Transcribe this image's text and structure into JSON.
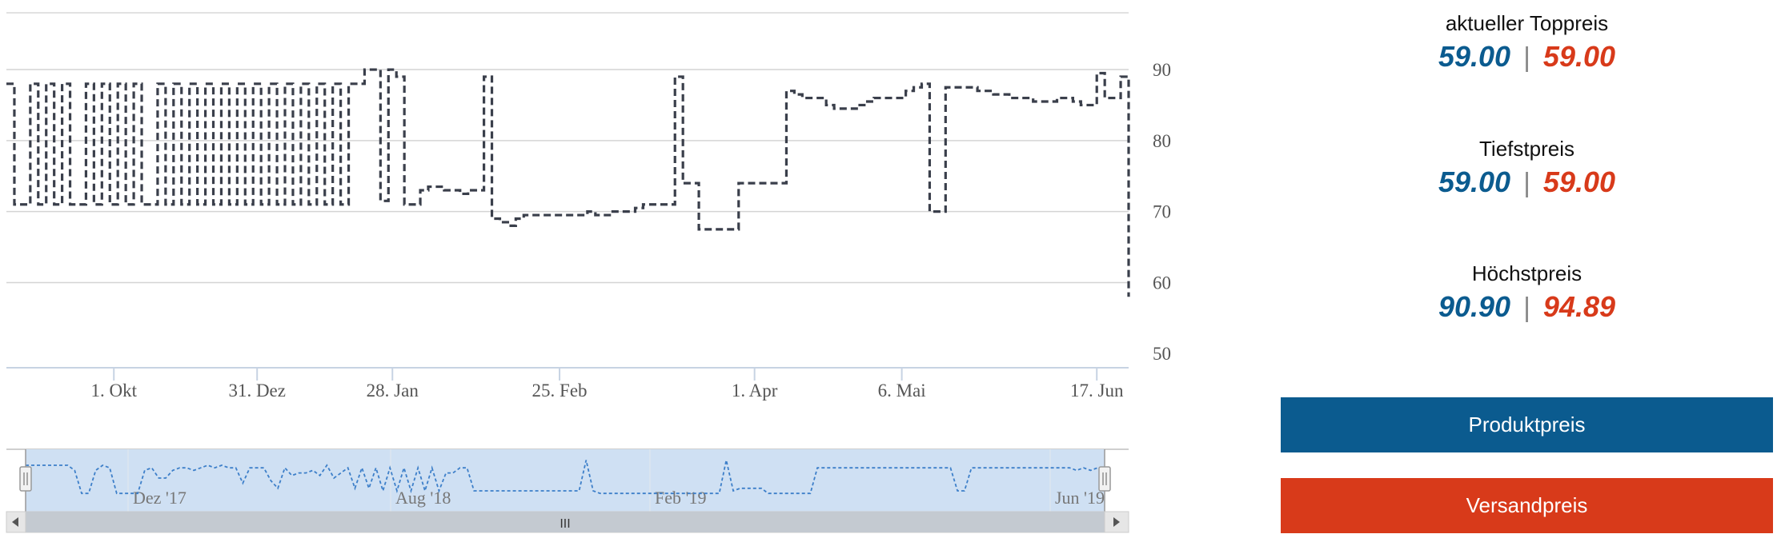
{
  "chart_data": {
    "type": "line",
    "series": [
      {
        "color": "#3a3f4b",
        "dash": "dashed",
        "step": true,
        "points": [
          [
            0,
            88
          ],
          [
            1,
            71
          ],
          [
            2,
            71
          ],
          [
            3,
            88
          ],
          [
            4,
            71
          ],
          [
            5,
            88
          ],
          [
            6,
            71
          ],
          [
            7,
            88
          ],
          [
            8,
            71
          ],
          [
            9,
            71
          ],
          [
            10,
            88
          ],
          [
            11,
            71
          ],
          [
            12,
            88
          ],
          [
            13,
            71
          ],
          [
            14,
            88
          ],
          [
            15,
            71
          ],
          [
            16,
            88
          ],
          [
            17,
            71
          ],
          [
            18,
            71
          ],
          [
            19,
            88
          ],
          [
            20,
            71
          ],
          [
            21,
            88
          ],
          [
            22,
            71
          ],
          [
            23,
            88
          ],
          [
            24,
            71
          ],
          [
            25,
            88
          ],
          [
            26,
            71
          ],
          [
            27,
            88
          ],
          [
            28,
            71
          ],
          [
            29,
            88
          ],
          [
            30,
            71
          ],
          [
            31,
            88
          ],
          [
            32,
            71
          ],
          [
            33,
            88
          ],
          [
            34,
            71
          ],
          [
            35,
            88
          ],
          [
            36,
            71
          ],
          [
            37,
            88
          ],
          [
            38,
            71
          ],
          [
            39,
            88
          ],
          [
            40,
            71
          ],
          [
            41,
            88
          ],
          [
            42,
            71
          ],
          [
            43,
            88
          ],
          [
            44,
            88
          ],
          [
            45,
            90
          ],
          [
            46,
            90
          ],
          [
            47,
            71.5
          ],
          [
            48,
            90
          ],
          [
            49,
            89
          ],
          [
            50,
            71
          ],
          [
            51,
            71
          ],
          [
            52,
            73
          ],
          [
            53,
            73.5
          ],
          [
            54,
            73.5
          ],
          [
            55,
            73
          ],
          [
            56,
            73
          ],
          [
            57,
            72.5
          ],
          [
            58,
            73
          ],
          [
            59,
            73
          ],
          [
            60,
            89
          ],
          [
            61,
            69
          ],
          [
            62,
            68.5
          ],
          [
            63,
            68
          ],
          [
            64,
            69
          ],
          [
            65,
            69.5
          ],
          [
            66,
            69.5
          ],
          [
            67,
            69.5
          ],
          [
            68,
            69.5
          ],
          [
            69,
            69.5
          ],
          [
            70,
            69.5
          ],
          [
            71,
            69.5
          ],
          [
            72,
            69.5
          ],
          [
            73,
            70
          ],
          [
            74,
            69.5
          ],
          [
            75,
            69.5
          ],
          [
            76,
            70
          ],
          [
            77,
            70
          ],
          [
            78,
            70
          ],
          [
            79,
            70.5
          ],
          [
            80,
            71
          ],
          [
            81,
            71
          ],
          [
            82,
            71
          ],
          [
            83,
            71
          ],
          [
            84,
            89
          ],
          [
            85,
            74
          ],
          [
            86,
            74
          ],
          [
            87,
            67.5
          ],
          [
            88,
            67.5
          ],
          [
            89,
            67.5
          ],
          [
            90,
            67.5
          ],
          [
            91,
            67.5
          ],
          [
            92,
            74
          ],
          [
            93,
            74
          ],
          [
            94,
            74
          ],
          [
            95,
            74
          ],
          [
            96,
            74
          ],
          [
            97,
            74
          ],
          [
            98,
            87
          ],
          [
            99,
            86.5
          ],
          [
            100,
            86
          ],
          [
            101,
            86
          ],
          [
            102,
            86
          ],
          [
            103,
            85
          ],
          [
            104,
            84.5
          ],
          [
            105,
            84.5
          ],
          [
            106,
            84.5
          ],
          [
            107,
            85
          ],
          [
            108,
            85.5
          ],
          [
            109,
            86
          ],
          [
            110,
            86
          ],
          [
            111,
            86
          ],
          [
            112,
            86
          ],
          [
            113,
            87
          ],
          [
            114,
            87.5
          ],
          [
            115,
            88
          ],
          [
            116,
            70
          ],
          [
            117,
            70
          ],
          [
            118,
            87.5
          ],
          [
            119,
            87.5
          ],
          [
            120,
            87.5
          ],
          [
            121,
            87.5
          ],
          [
            122,
            87
          ],
          [
            123,
            87
          ],
          [
            124,
            86.5
          ],
          [
            125,
            86.5
          ],
          [
            126,
            86
          ],
          [
            127,
            86
          ],
          [
            128,
            86
          ],
          [
            129,
            85.5
          ],
          [
            130,
            85.5
          ],
          [
            131,
            85.5
          ],
          [
            132,
            86
          ],
          [
            133,
            86
          ],
          [
            134,
            85.5
          ],
          [
            135,
            85
          ],
          [
            136,
            85
          ],
          [
            137,
            89.5
          ],
          [
            138,
            86
          ],
          [
            139,
            86
          ],
          [
            140,
            89
          ],
          [
            141,
            58
          ]
        ]
      }
    ],
    "x_ticks": [
      {
        "x": 13.5,
        "label": "1. Okt"
      },
      {
        "x": 31.5,
        "label": "31. Dez"
      },
      {
        "x": 48.5,
        "label": "28. Jan"
      },
      {
        "x": 69.5,
        "label": "25. Feb"
      },
      {
        "x": 94,
        "label": "1. Apr"
      },
      {
        "x": 112.5,
        "label": "6. Mai"
      },
      {
        "x": 137,
        "label": "17. Jun"
      }
    ],
    "xlim": [
      0,
      141
    ],
    "y_ticks": [
      50,
      60,
      70,
      80,
      90
    ],
    "ylim": [
      48,
      98
    ],
    "y_axis_side": "right",
    "grid": true,
    "navigator": {
      "labels": [
        "Dez '17",
        "Aug '18",
        "Feb '19",
        "Jun '19"
      ],
      "scrollbar_grip": "III",
      "points": [
        [
          0,
          91
        ],
        [
          3,
          91
        ],
        [
          6,
          91
        ],
        [
          7,
          89
        ],
        [
          8,
          80
        ],
        [
          9,
          80
        ],
        [
          10,
          89
        ],
        [
          11,
          91
        ],
        [
          12,
          90
        ],
        [
          13,
          80
        ],
        [
          14,
          80
        ],
        [
          15,
          80
        ],
        [
          16,
          80
        ],
        [
          17,
          89
        ],
        [
          18,
          90
        ],
        [
          19,
          86
        ],
        [
          20,
          86
        ],
        [
          21,
          89
        ],
        [
          22,
          90
        ],
        [
          23,
          90
        ],
        [
          24,
          89
        ],
        [
          25,
          90
        ],
        [
          26,
          91
        ],
        [
          27,
          90
        ],
        [
          28,
          91
        ],
        [
          29,
          90
        ],
        [
          30,
          90
        ],
        [
          31,
          84
        ],
        [
          32,
          90
        ],
        [
          33,
          90
        ],
        [
          34,
          90
        ],
        [
          35,
          85
        ],
        [
          36,
          82
        ],
        [
          37,
          90
        ],
        [
          38,
          87
        ],
        [
          39,
          88
        ],
        [
          40,
          88
        ],
        [
          41,
          89
        ],
        [
          42,
          87
        ],
        [
          43,
          91
        ],
        [
          44,
          86
        ],
        [
          45,
          88
        ],
        [
          46,
          90
        ],
        [
          47,
          82
        ],
        [
          48,
          90
        ],
        [
          49,
          82
        ],
        [
          50,
          90
        ],
        [
          51,
          81
        ],
        [
          52,
          90
        ],
        [
          53,
          81
        ],
        [
          54,
          90
        ],
        [
          55,
          81
        ],
        [
          56,
          90
        ],
        [
          57,
          81
        ],
        [
          58,
          90
        ],
        [
          59,
          81
        ],
        [
          60,
          88
        ],
        [
          61,
          88
        ],
        [
          62,
          90
        ],
        [
          63,
          90
        ],
        [
          64,
          81
        ],
        [
          65,
          81
        ],
        [
          66,
          81
        ],
        [
          67,
          81
        ],
        [
          68,
          81
        ],
        [
          69,
          81
        ],
        [
          70,
          81
        ],
        [
          71,
          81
        ],
        [
          72,
          81
        ],
        [
          73,
          81
        ],
        [
          74,
          81
        ],
        [
          75,
          81
        ],
        [
          76,
          81
        ],
        [
          77,
          81
        ],
        [
          78,
          81
        ],
        [
          79,
          81
        ],
        [
          80,
          93
        ],
        [
          81,
          81
        ],
        [
          82,
          80
        ],
        [
          83,
          80
        ],
        [
          84,
          80
        ],
        [
          85,
          80
        ],
        [
          86,
          80
        ],
        [
          87,
          80
        ],
        [
          88,
          80
        ],
        [
          89,
          80
        ],
        [
          90,
          80
        ],
        [
          91,
          80
        ],
        [
          92,
          80
        ],
        [
          93,
          80
        ],
        [
          94,
          80
        ],
        [
          95,
          80
        ],
        [
          96,
          80
        ],
        [
          97,
          80
        ],
        [
          98,
          80
        ],
        [
          99,
          80
        ],
        [
          100,
          93
        ],
        [
          101,
          81
        ],
        [
          102,
          82
        ],
        [
          103,
          82
        ],
        [
          104,
          82
        ],
        [
          105,
          82
        ],
        [
          106,
          80
        ],
        [
          107,
          80
        ],
        [
          108,
          80
        ],
        [
          109,
          80
        ],
        [
          110,
          80
        ],
        [
          111,
          80
        ],
        [
          112,
          80
        ],
        [
          113,
          90
        ],
        [
          114,
          90
        ],
        [
          115,
          90
        ],
        [
          116,
          90
        ],
        [
          117,
          90
        ],
        [
          118,
          90
        ],
        [
          119,
          90
        ],
        [
          120,
          90
        ],
        [
          121,
          90
        ],
        [
          122,
          90
        ],
        [
          123,
          90
        ],
        [
          124,
          90
        ],
        [
          125,
          90
        ],
        [
          126,
          90
        ],
        [
          127,
          90
        ],
        [
          128,
          90
        ],
        [
          129,
          90
        ],
        [
          130,
          90
        ],
        [
          131,
          90
        ],
        [
          132,
          90
        ],
        [
          133,
          81
        ],
        [
          134,
          81
        ],
        [
          135,
          90
        ],
        [
          136,
          90
        ],
        [
          137,
          90
        ],
        [
          138,
          90
        ],
        [
          139,
          90
        ],
        [
          140,
          90
        ],
        [
          141,
          90
        ],
        [
          142,
          90
        ],
        [
          143,
          90
        ],
        [
          144,
          90
        ],
        [
          145,
          90
        ],
        [
          146,
          90
        ],
        [
          147,
          90
        ],
        [
          148,
          90
        ],
        [
          149,
          90
        ],
        [
          150,
          89
        ],
        [
          151,
          90
        ],
        [
          152,
          89
        ],
        [
          153,
          90
        ],
        [
          154,
          90
        ]
      ]
    }
  },
  "stats": [
    {
      "label": "aktueller Toppreis",
      "blue": "59.00",
      "separator": "|",
      "red": "59.00"
    },
    {
      "label": "Tiefstpreis",
      "blue": "59.00",
      "separator": "|",
      "red": "59.00"
    },
    {
      "label": "Höchstpreis",
      "blue": "90.90",
      "separator": "|",
      "red": "94.89"
    }
  ],
  "buttons": {
    "product_price": "Produktpreis",
    "shipping_price": "Versandpreis"
  },
  "colors": {
    "blue": "#0b5b8f",
    "red": "#d83a1a",
    "navigator_fill": "#cfe0f3",
    "navigator_line": "#3d7fc9",
    "scrollbar": "#c4cad1"
  }
}
